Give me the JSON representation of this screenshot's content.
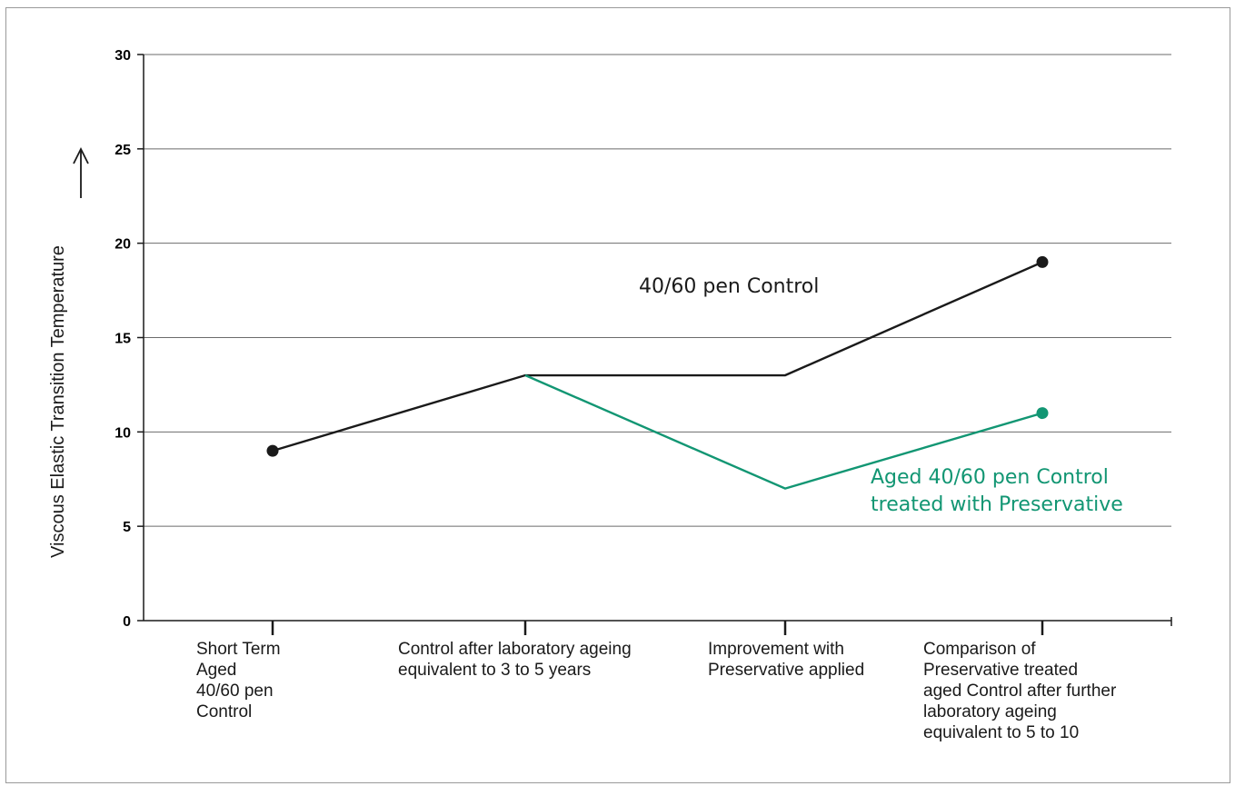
{
  "chart_data": {
    "type": "line",
    "ylabel": "Viscous Elastic Transition Temperature",
    "ylim": [
      0,
      30
    ],
    "yticks": [
      0,
      5,
      10,
      15,
      20,
      25,
      30
    ],
    "grid": true,
    "categories": [
      "Short Term\nAged\n40/60 pen\nControl",
      "Control after laboratory ageing\nequivalent to 3 to 5 years",
      "Improvement with\nPreservative applied",
      "Comparison of\nPreservative treated\naged Control after further\nlaboratory ageing\nequivalent to 5 to 10"
    ],
    "series": [
      {
        "name": "40/60 pen Control",
        "color": "#1a1a1a",
        "points": [
          [
            0,
            9
          ],
          [
            1,
            13
          ],
          [
            2,
            13
          ],
          [
            3,
            19
          ]
        ],
        "markers": [
          0,
          3
        ]
      },
      {
        "name": "Aged 40/60 pen Control\ntreated with Preservative",
        "color": "#129673",
        "points": [
          [
            1,
            13
          ],
          [
            2,
            7
          ],
          [
            3,
            11
          ]
        ],
        "markers": [
          3
        ]
      }
    ]
  }
}
